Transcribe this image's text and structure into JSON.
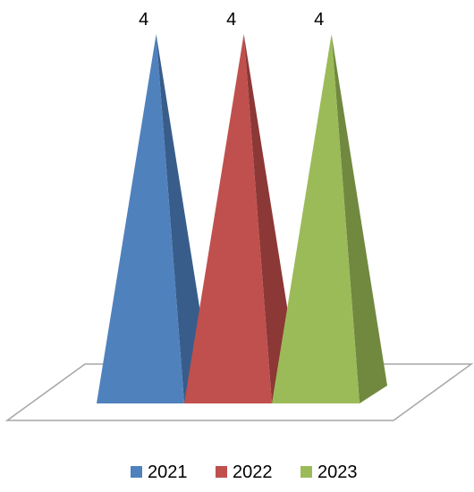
{
  "chart_data": {
    "type": "bar",
    "shape": "3d-pyramid",
    "categories": [
      ""
    ],
    "series": [
      {
        "name": "2021",
        "values": [
          4
        ],
        "color": "#4F81BD",
        "side_color": "#385D8A",
        "data_label": "4"
      },
      {
        "name": "2022",
        "values": [
          4
        ],
        "color": "#C0504D",
        "side_color": "#8C3836",
        "data_label": "4"
      },
      {
        "name": "2023",
        "values": [
          4
        ],
        "color": "#9BBB59",
        "side_color": "#71893F",
        "data_label": "4"
      }
    ],
    "title": "",
    "xlabel": "",
    "ylabel": "",
    "ylim": [
      0,
      4
    ],
    "grid": false,
    "legend": "bottom",
    "floor_color": "#A6A6A6"
  }
}
